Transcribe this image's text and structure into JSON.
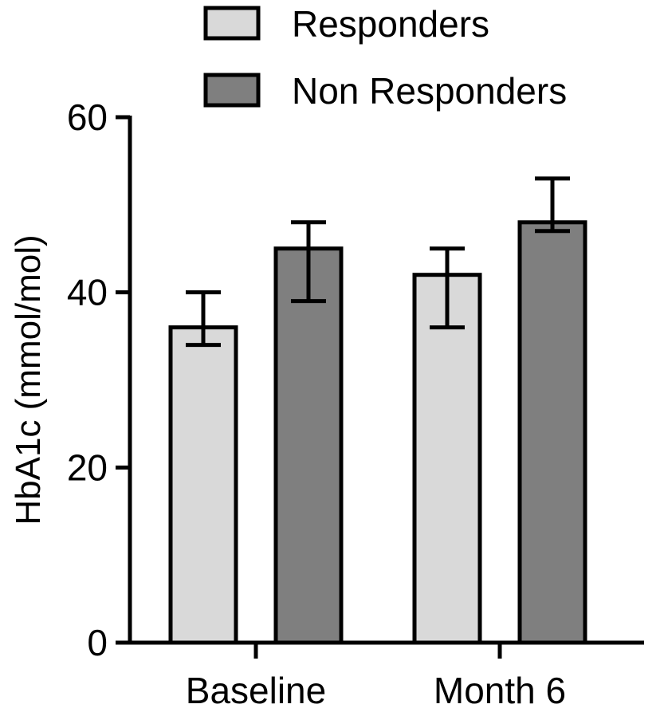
{
  "chart_data": {
    "type": "bar",
    "categories": [
      "Baseline",
      "Month 6"
    ],
    "series": [
      {
        "name": "Responders",
        "color": "#d9d9d9",
        "values": [
          36,
          42
        ],
        "error_low": [
          34,
          36
        ],
        "error_high": [
          40,
          45
        ]
      },
      {
        "name": "Non Responders",
        "color": "#7f7f7f",
        "values": [
          45,
          48
        ],
        "error_low": [
          39,
          47
        ],
        "error_high": [
          48,
          53
        ]
      }
    ],
    "title": "",
    "xlabel": "",
    "ylabel": "HbA1c (mmol/mol)",
    "ylim": [
      0,
      60
    ],
    "yticks": [
      0,
      20,
      40,
      60
    ],
    "ytick_labels": [
      "0",
      "20",
      "40",
      "60"
    ],
    "grid": false,
    "legend_position": "top"
  }
}
